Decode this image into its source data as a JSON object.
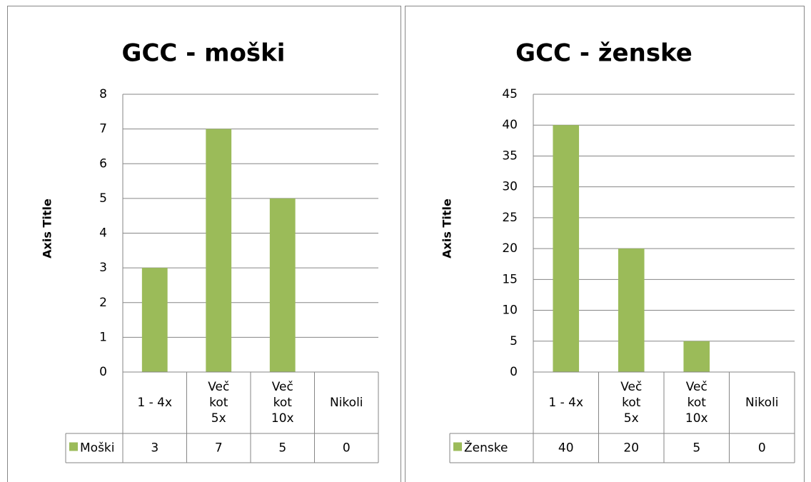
{
  "chart_data": [
    {
      "type": "bar",
      "title": "GCC - moški",
      "y_axis_title": "Axis Title",
      "categories": [
        "1 - 4x",
        "Več kot 5x",
        "Več kot 10x",
        "Nikoli"
      ],
      "series": [
        {
          "name": "Moški",
          "color": "#9bbb59",
          "values": [
            3,
            7,
            5,
            0
          ]
        }
      ],
      "ylim": [
        0,
        8
      ],
      "yticks": [
        0,
        1,
        2,
        3,
        4,
        5,
        6,
        7,
        8
      ],
      "grid": true,
      "data_table": true
    },
    {
      "type": "bar",
      "title": "GCC - ženske",
      "y_axis_title": "Axis Title",
      "categories": [
        "1 - 4x",
        "Več kot 5x",
        "Več kot 10x",
        "Nikoli"
      ],
      "series": [
        {
          "name": "Ženske",
          "color": "#9bbb59",
          "values": [
            40,
            20,
            5,
            0
          ]
        }
      ],
      "ylim": [
        0,
        45
      ],
      "yticks": [
        0,
        5,
        10,
        15,
        20,
        25,
        30,
        35,
        40,
        45
      ],
      "grid": true,
      "data_table": true
    }
  ]
}
